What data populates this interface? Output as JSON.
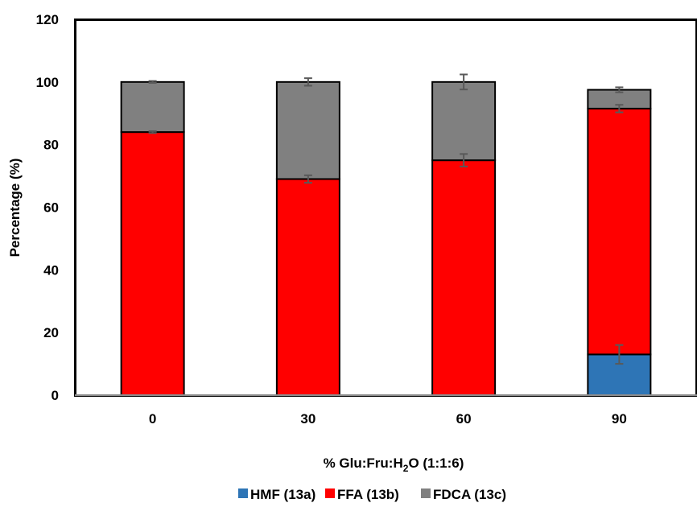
{
  "chart_data": {
    "type": "bar",
    "stacked": true,
    "categories": [
      "0",
      "30",
      "60",
      "90"
    ],
    "series": [
      {
        "name": "HMF (13a)",
        "color": "#2E75B6",
        "values": [
          0,
          0,
          0,
          13
        ],
        "errors": [
          0,
          0,
          0,
          3
        ]
      },
      {
        "name": "FFA (13b)",
        "color": "#FF0000",
        "values": [
          84,
          69,
          75,
          78.5
        ],
        "errors": [
          0.3,
          1.2,
          2.0,
          1.2
        ]
      },
      {
        "name": "FDCA (13c)",
        "color": "#808080",
        "values": [
          16,
          31,
          25,
          6
        ],
        "errors": [
          0.3,
          1.2,
          2.4,
          0.8
        ]
      }
    ],
    "xlabel": {
      "main": "% Glu:Fru:H",
      "subscript": "2",
      "rest": "O (1:1:6)"
    },
    "ylabel": "Percentage (%)",
    "ylim": [
      0,
      120
    ],
    "yticks": [
      "0",
      "20",
      "40",
      "60",
      "80",
      "100",
      "120"
    ],
    "grid": false,
    "legend_position": "bottom"
  }
}
